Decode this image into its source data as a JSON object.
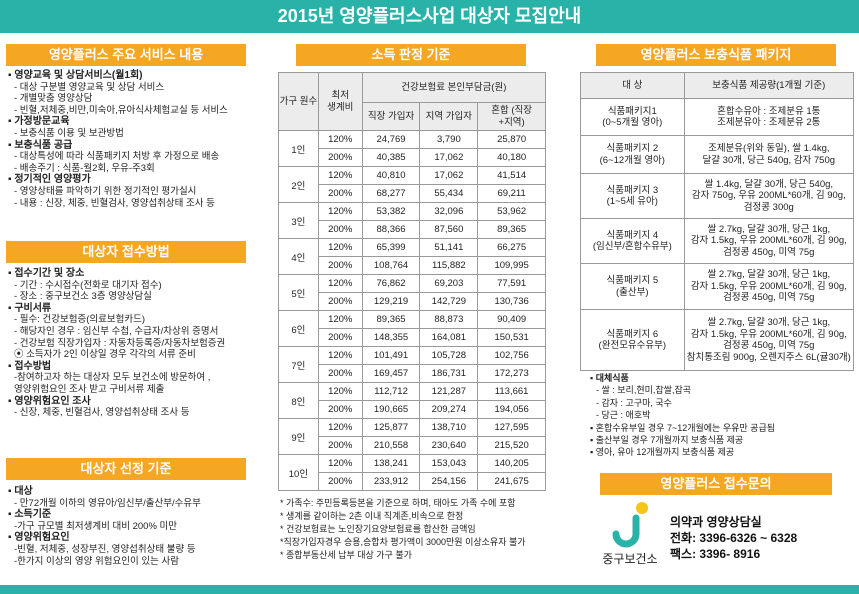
{
  "header": {
    "title": "2015년 영양플러스사업 대상자 모집안내"
  },
  "services": {
    "title": "영양플러스 주요 서비스 내용",
    "items": [
      {
        "heading": "영양교육 및 상담서비스(월1회)",
        "lines": [
          "- 대상 구분별 영양교육 및 상담 서비스",
          "- 개별맞춤 영양상담",
          "- 빈혈,저체중,비만,미숙아,유아식사체험교실 등 서비스"
        ]
      },
      {
        "heading": "가정방문교육",
        "lines": [
          "- 보충식품 이용 및 보관방법"
        ]
      },
      {
        "heading": "보충식품 공급",
        "lines": [
          "- 대상특성에 따라 식품패키지 처방 후 가정으로 배송",
          "- 배송주기 : 식품-월2회, 우유-주3회"
        ]
      },
      {
        "heading": "정기적인 영양평가",
        "lines": [
          "- 영양상태를 파악하기 위한 정기적인 평가실시",
          "- 내용 : 신장, 체중, 빈혈검사, 영양섭취상태 조사 등"
        ]
      }
    ]
  },
  "application": {
    "title": "대상자 접수방법",
    "items": [
      {
        "heading": "접수기간 및 장소",
        "lines": [
          "- 기간 : 수시접수(전화로 대기자 접수)",
          "- 장소 : 중구보건소 3층 영양상담실"
        ]
      },
      {
        "heading": "구비서류",
        "lines": [
          "- 필수: 건강보험증(의료보험카드)",
          "- 해당자인 경우 : 임신부 수첩, 수급자/차상위 증명서",
          "- 건강보험 직장가입자 : 자동차등록증/자동차보험증권",
          "⦿ 소득자가 2인 이상일 경우 각각의 서류 준비"
        ]
      },
      {
        "heading": "접수방법",
        "lines": [
          "-참여하고자 하는 대상자 모두 보건소에 방문하여 ,",
          "영양위험요인 조사 받고 구비서류 제출"
        ]
      },
      {
        "heading": "영양위험요인 조사",
        "lines": [
          "- 신장, 체중, 빈혈검사, 영양섭취상태 조사 등"
        ]
      }
    ]
  },
  "selection": {
    "title": "대상자 선정 기준",
    "items": [
      {
        "heading": "대상",
        "lines": [
          "- 만72개월 이하의 영유아/임신부/출산부/수유부"
        ]
      },
      {
        "heading": "소득기준",
        "lines": [
          "-가구 규모별 최저생계비 대비 200% 미만"
        ]
      },
      {
        "heading": "영양위험요인",
        "lines": [
          "-빈혈, 저체중, 성장부진, 영양섭취상태 불량 등",
          "-한가지 이상의 영양 위험요인이 있는 사람"
        ]
      }
    ]
  },
  "income": {
    "title": "소득 판정 기준",
    "head": {
      "household": "가구 원수",
      "poverty": "최저 생계비",
      "insurance": "건강보험료 본인부담금(원)",
      "employee": "직장 가입자",
      "regional": "지역 가입자",
      "mixed": "혼합 (직장+지역)"
    },
    "rows": [
      {
        "household": "1인",
        "levels": [
          {
            "rate": "120%",
            "values": [
              "24,769",
              "3,790",
              "25,870"
            ]
          },
          {
            "rate": "200%",
            "values": [
              "40,385",
              "17,062",
              "40,180"
            ]
          }
        ]
      },
      {
        "household": "2인",
        "levels": [
          {
            "rate": "120%",
            "values": [
              "40,810",
              "17,062",
              "41,514"
            ]
          },
          {
            "rate": "200%",
            "values": [
              "68,277",
              "55,434",
              "69,211"
            ]
          }
        ]
      },
      {
        "household": "3인",
        "levels": [
          {
            "rate": "120%",
            "values": [
              "53,382",
              "32,096",
              "53,962"
            ]
          },
          {
            "rate": "200%",
            "values": [
              "88,366",
              "87,560",
              "89,365"
            ]
          }
        ]
      },
      {
        "household": "4인",
        "levels": [
          {
            "rate": "120%",
            "values": [
              "65,399",
              "51,141",
              "66,275"
            ]
          },
          {
            "rate": "200%",
            "values": [
              "108,764",
              "115,882",
              "109,995"
            ]
          }
        ]
      },
      {
        "household": "5인",
        "levels": [
          {
            "rate": "120%",
            "values": [
              "76,862",
              "69,203",
              "77,591"
            ]
          },
          {
            "rate": "200%",
            "values": [
              "129,219",
              "142,729",
              "130,736"
            ]
          }
        ]
      },
      {
        "household": "6인",
        "levels": [
          {
            "rate": "120%",
            "values": [
              "89,365",
              "88,873",
              "90,409"
            ]
          },
          {
            "rate": "200%",
            "values": [
              "148,355",
              "164,081",
              "150,531"
            ]
          }
        ]
      },
      {
        "household": "7인",
        "levels": [
          {
            "rate": "120%",
            "values": [
              "101,491",
              "105,728",
              "102,756"
            ]
          },
          {
            "rate": "200%",
            "values": [
              "169,457",
              "186,731",
              "172,273"
            ]
          }
        ]
      },
      {
        "household": "8인",
        "levels": [
          {
            "rate": "120%",
            "values": [
              "112,712",
              "121,287",
              "113,661"
            ]
          },
          {
            "rate": "200%",
            "values": [
              "190,665",
              "209,274",
              "194,056"
            ]
          }
        ]
      },
      {
        "household": "9인",
        "levels": [
          {
            "rate": "120%",
            "values": [
              "125,877",
              "138,710",
              "127,595"
            ]
          },
          {
            "rate": "200%",
            "values": [
              "210,558",
              "230,640",
              "215,520"
            ]
          }
        ]
      },
      {
        "household": "10인",
        "levels": [
          {
            "rate": "120%",
            "values": [
              "138,241",
              "153,043",
              "140,205"
            ]
          },
          {
            "rate": "200%",
            "values": [
              "233,912",
              "254,156",
              "241,675"
            ]
          }
        ]
      }
    ],
    "notes": [
      "* 가족수: 주민등록등본을 기준으로 하며, 태아도 가족 수에 포함",
      "* 생계를 같이하는 2촌 이내 직계존,비속으로 한정",
      "* 건강보험료는 노인장기요양보험료를 합산한 금액임",
      "*직장가입자경우 승용,승합차 평가액이 3000만원  이상소유자 불가",
      "* 종합부동산세 납부 대상 가구 불가"
    ]
  },
  "packages": {
    "title": "영양플러스 보충식품 패키지",
    "head": {
      "target": "대  상",
      "amount": "보충식품 제공량(1개월 기준)"
    },
    "rows": [
      {
        "name": [
          "식품패키지1",
          "(0~5개월 영아)"
        ],
        "items": [
          "혼합수유아 : 조제분유 1통",
          "조제분유아 : 조제분유 2통"
        ]
      },
      {
        "name": [
          "식품패키지 2",
          "(6~12개월 영아)"
        ],
        "items": [
          "조제분유(위와 동일), 쌀 1.4kg,",
          "달걀 30개, 당근 540g, 감자 750g"
        ]
      },
      {
        "name": [
          "식품패키지 3",
          "(1~5세 유아)"
        ],
        "items": [
          "쌀 1.4kg, 달걀 30개, 당근 540g,",
          "감자 750g, 우유 200ML*60개, 김 90g,",
          "검정콩 300g"
        ]
      },
      {
        "name": [
          "식품패키지 4",
          "(임신부/혼합수유부)"
        ],
        "items": [
          "쌀 2.7kg, 달걀 30개, 당근 1kg,",
          "감자 1.5kg, 우유 200ML*60개, 김 90g,",
          "검정콩 450g, 미역 75g"
        ]
      },
      {
        "name": [
          "식품패키지 5",
          "(출산부)"
        ],
        "items": [
          "쌀 2.7kg, 달걀 30개, 당근 1kg,",
          "감자 1.5kg, 우유 200ML*60개, 김 90g,",
          "검정콩 450g, 미역 75g"
        ]
      },
      {
        "name": [
          "식품패키지 6",
          "(완전모유수유부)"
        ],
        "items": [
          "쌀 2.7kg, 달걀 30개, 당근 1kg,",
          "감자 1.5kg, 우유 200ML*60개, 김 90g,",
          "검정콩 450g, 미역 75g",
          "참치통조림 900g, 오렌지주스 6L(귤30개)"
        ]
      }
    ],
    "notes": [
      {
        "text": "대체식품",
        "bullet": true
      },
      {
        "text": "- 쌀 : 보리,현미,찹쌀,잡곡",
        "bullet": false
      },
      {
        "text": "- 감자 : 고구마, 국수",
        "bullet": false
      },
      {
        "text": "- 당근 : 애호박",
        "bullet": false
      },
      {
        "text": "혼합수유부일 경우 7~12개월에는 우유만 공급됨",
        "bullet": true
      },
      {
        "text": "출산부일 경우 7개월까지 보충식품 제공",
        "bullet": true
      },
      {
        "text": "영아, 유아 12개월까지 보충식품 제공",
        "bullet": true
      }
    ]
  },
  "contact": {
    "title": "영양플러스 접수문의",
    "org": "중구보건소",
    "dept": "의약과 영양상담실",
    "phone": "전화: 3396-6326 ~ 6328",
    "fax": "팩스: 3396- 8916"
  }
}
